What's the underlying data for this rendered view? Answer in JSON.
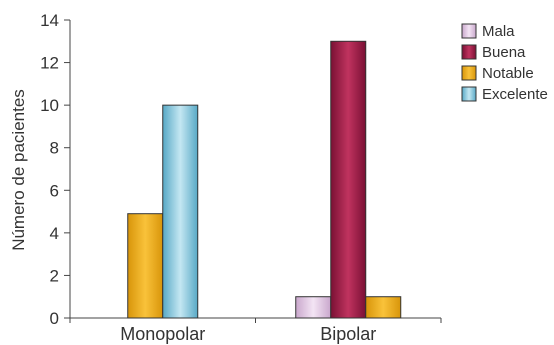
{
  "chart_data": {
    "type": "bar",
    "ylabel": "Número de pacientes",
    "xlabel": "",
    "ylim": [
      0,
      14
    ],
    "yticks": [
      "0",
      "2",
      "4",
      "6",
      "8",
      "10",
      "12",
      "14"
    ],
    "categories": [
      "Monopolar",
      "Bipolar"
    ],
    "series": [
      {
        "name": "Mala",
        "color": "#e6cde8",
        "values": [
          0,
          1
        ]
      },
      {
        "name": "Buena",
        "color": "#a01c4a",
        "values": [
          0,
          13
        ]
      },
      {
        "name": "Notable",
        "color": "#f0b21a",
        "values": [
          4.9,
          1
        ]
      },
      {
        "name": "Excelente",
        "color": "#7cc4dc",
        "values": [
          10,
          0
        ]
      }
    ],
    "legend_position": "top-right",
    "grid": false
  }
}
